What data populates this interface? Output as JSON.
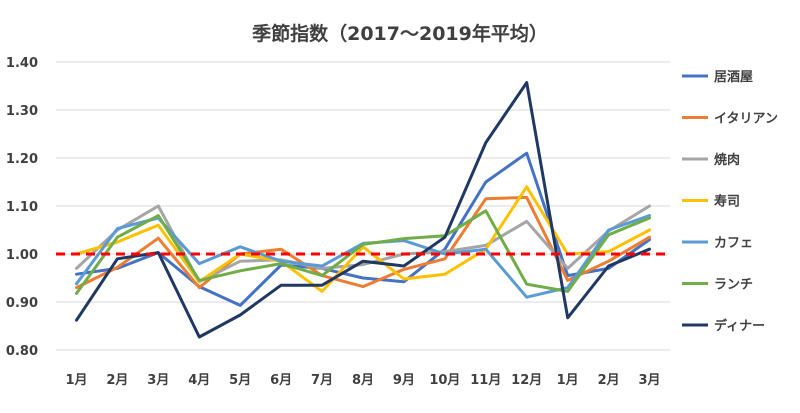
{
  "chart_data": {
    "type": "line",
    "title": "季節指数（2017～2019年平均）",
    "categories": [
      "1月",
      "2月",
      "3月",
      "4月",
      "5月",
      "6月",
      "7月",
      "8月",
      "9月",
      "10月",
      "11月",
      "12月",
      "1月",
      "2月",
      "3月"
    ],
    "ylim": [
      0.8,
      1.4
    ],
    "yticks": [
      "0.80",
      "0.90",
      "1.00",
      "1.10",
      "1.20",
      "1.30",
      "1.40"
    ],
    "reference_line": {
      "value": 1.0,
      "color": "#ff0000",
      "style": "dashed"
    },
    "grid": "horizontal",
    "legend": "right",
    "series": [
      {
        "name": "居酒屋",
        "color": "#4472c4",
        "values": [
          0.958,
          0.97,
          1.003,
          0.932,
          0.893,
          0.977,
          0.97,
          0.95,
          0.942,
          1.01,
          1.15,
          1.21,
          0.955,
          0.97,
          1.03
        ]
      },
      {
        "name": "イタリアン",
        "color": "#ed7d31",
        "values": [
          0.93,
          0.972,
          1.033,
          0.93,
          1.0,
          1.01,
          0.955,
          0.932,
          0.968,
          0.99,
          1.115,
          1.118,
          0.945,
          0.985,
          1.035
        ]
      },
      {
        "name": "焼肉",
        "color": "#a5a5a5",
        "values": [
          0.97,
          1.05,
          1.1,
          0.942,
          0.985,
          0.988,
          0.97,
          0.978,
          1.0,
          1.005,
          1.018,
          1.068,
          0.97,
          1.048,
          1.1
        ]
      },
      {
        "name": "寿司",
        "color": "#ffc000",
        "values": [
          1.0,
          1.025,
          1.06,
          0.942,
          1.0,
          0.985,
          0.922,
          1.015,
          0.948,
          0.958,
          1.01,
          1.14,
          1.0,
          1.005,
          1.05
        ]
      },
      {
        "name": "カフェ",
        "color": "#5b9bd5",
        "values": [
          0.938,
          1.053,
          1.075,
          0.98,
          1.015,
          0.985,
          0.975,
          1.022,
          1.028,
          1.0,
          1.01,
          0.91,
          0.93,
          1.05,
          1.08
        ]
      },
      {
        "name": "ランチ",
        "color": "#70ad47",
        "values": [
          0.918,
          1.035,
          1.08,
          0.945,
          0.965,
          0.98,
          0.955,
          1.02,
          1.032,
          1.038,
          1.09,
          0.937,
          0.922,
          1.04,
          1.075
        ]
      },
      {
        "name": "ディナー",
        "color": "#203864",
        "values": [
          0.862,
          0.99,
          1.003,
          0.827,
          0.873,
          0.935,
          0.935,
          0.985,
          0.975,
          1.035,
          1.232,
          1.357,
          0.867,
          0.975,
          1.01
        ]
      }
    ]
  }
}
